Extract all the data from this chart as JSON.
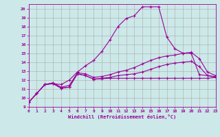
{
  "xlabel": "Windchill (Refroidissement éolien,°C)",
  "background_color": "#cce8e8",
  "line_color": "#990099",
  "grid_color": "#aaaaaa",
  "xlim": [
    0,
    23
  ],
  "ylim": [
    9,
    20.5
  ],
  "yticks": [
    9,
    10,
    11,
    12,
    13,
    14,
    15,
    16,
    17,
    18,
    19,
    20
  ],
  "xticks": [
    0,
    1,
    2,
    3,
    4,
    5,
    6,
    7,
    8,
    9,
    10,
    11,
    12,
    13,
    14,
    15,
    16,
    17,
    18,
    19,
    20,
    21,
    22,
    23
  ],
  "lines": [
    [
      9.5,
      10.5,
      11.5,
      11.6,
      11.1,
      11.2,
      12.7,
      12.5,
      12.1,
      12.15,
      12.2,
      12.2,
      12.2,
      12.2,
      12.2,
      12.2,
      12.2,
      12.2,
      12.2,
      12.2,
      12.2,
      12.2,
      12.2,
      12.3
    ],
    [
      9.5,
      10.5,
      11.5,
      11.6,
      11.1,
      11.2,
      12.7,
      12.5,
      12.1,
      12.2,
      12.3,
      12.5,
      12.6,
      12.7,
      12.9,
      13.2,
      13.5,
      13.75,
      13.9,
      14.0,
      14.1,
      13.5,
      12.5,
      12.3
    ],
    [
      9.5,
      10.5,
      11.5,
      11.7,
      11.2,
      11.4,
      12.8,
      12.7,
      12.3,
      12.4,
      12.6,
      12.9,
      13.1,
      13.4,
      13.8,
      14.2,
      14.5,
      14.7,
      14.8,
      15.0,
      15.1,
      14.4,
      12.9,
      12.5
    ],
    [
      9.5,
      10.5,
      11.5,
      11.6,
      11.5,
      12.0,
      12.9,
      13.6,
      14.2,
      15.2,
      16.5,
      18.0,
      18.9,
      19.2,
      20.2,
      20.2,
      20.2,
      16.8,
      15.5,
      15.0,
      15.0,
      12.6,
      12.5,
      12.4
    ]
  ]
}
